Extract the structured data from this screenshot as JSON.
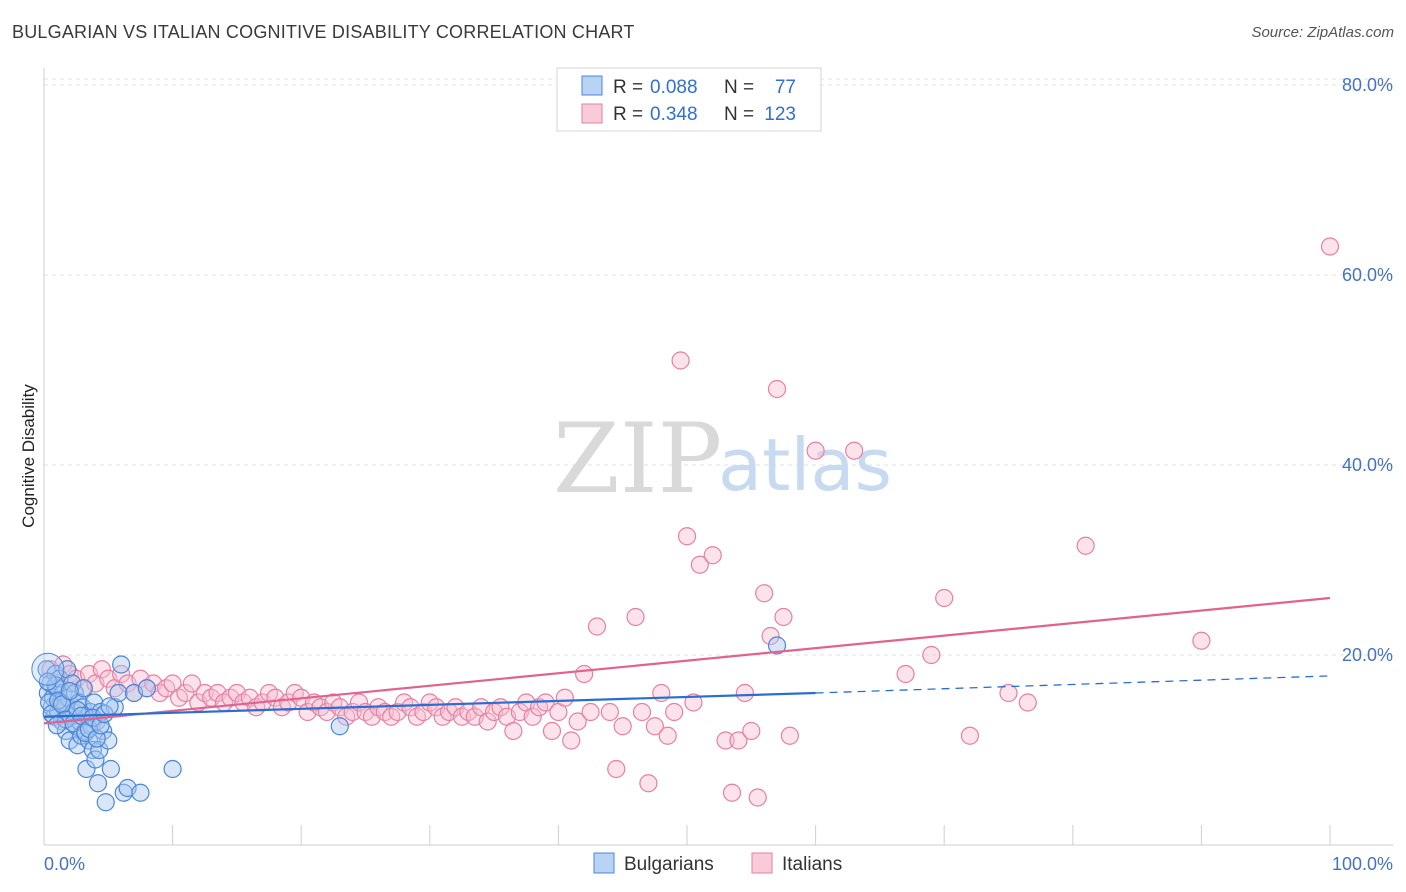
{
  "header": {
    "title": "BULGARIAN VS ITALIAN COGNITIVE DISABILITY CORRELATION CHART",
    "source": "Source: ZipAtlas.com"
  },
  "watermark": {
    "zip": "ZIP",
    "atlas": "atlas"
  },
  "colors": {
    "bulgarian_fill": "#a9c8f0",
    "bulgarian_stroke": "#4a86d8",
    "bulgarian_line": "#2a6fd0",
    "italian_fill": "#f7bfd2",
    "italian_stroke": "#e67fa3",
    "italian_line": "#e0638f",
    "grid": "#e2e2e2",
    "tick_label": "#4472c4"
  },
  "legend": {
    "rows": [
      {
        "r_label": "R =",
        "r_value": "0.088",
        "n_label": "N =",
        "n_value": "77"
      },
      {
        "r_label": "R =",
        "r_value": "0.348",
        "n_label": "N =",
        "n_value": "123"
      }
    ]
  },
  "bottom_legend": {
    "bulgarians": "Bulgarians",
    "italians": "Italians"
  },
  "chart_data": {
    "type": "scatter",
    "title": "BULGARIAN VS ITALIAN COGNITIVE DISABILITY CORRELATION CHART",
    "xlabel": "",
    "ylabel": "Cognitive Disability",
    "xlim": [
      0,
      100
    ],
    "ylim": [
      0,
      85
    ],
    "x_tick_labels": [
      "0.0%",
      "100.0%"
    ],
    "y_ticks": [
      20,
      40,
      60,
      80
    ],
    "y_tick_labels": [
      "20.0%",
      "40.0%",
      "60.0%",
      "80.0%"
    ],
    "grid": true,
    "legend_position": "top-center",
    "series": [
      {
        "name": "Bulgarians",
        "r": 0.088,
        "n": 77,
        "trend": {
          "x0": 0,
          "y0": 13.5,
          "x1": 60,
          "y1": 16.0,
          "dashed_to_x": 100,
          "dashed_to_y": 17.8
        },
        "points": [
          [
            0.2,
            18.5
          ],
          [
            0.3,
            16
          ],
          [
            0.5,
            17
          ],
          [
            0.6,
            14.5
          ],
          [
            0.7,
            15.5
          ],
          [
            0.8,
            13.5
          ],
          [
            0.9,
            18
          ],
          [
            1.0,
            16.5
          ],
          [
            1.1,
            14
          ],
          [
            1.2,
            17.5
          ],
          [
            1.3,
            15
          ],
          [
            1.4,
            13
          ],
          [
            1.5,
            16
          ],
          [
            1.6,
            14.5
          ],
          [
            1.7,
            12
          ],
          [
            1.8,
            18.5
          ],
          [
            1.9,
            15.5
          ],
          [
            2.0,
            11
          ],
          [
            2.1,
            13.5
          ],
          [
            2.2,
            17
          ],
          [
            2.3,
            14
          ],
          [
            2.4,
            16
          ],
          [
            2.5,
            12.5
          ],
          [
            2.6,
            10.5
          ],
          [
            2.7,
            15
          ],
          [
            2.8,
            13
          ],
          [
            2.9,
            11.5
          ],
          [
            3.0,
            14.5
          ],
          [
            3.1,
            16.5
          ],
          [
            3.2,
            12
          ],
          [
            3.3,
            8
          ],
          [
            3.4,
            13.5
          ],
          [
            3.5,
            11
          ],
          [
            3.6,
            14
          ],
          [
            3.7,
            12.5
          ],
          [
            3.8,
            10
          ],
          [
            3.9,
            15
          ],
          [
            4.0,
            9
          ],
          [
            4.1,
            13
          ],
          [
            4.2,
            6.5
          ],
          [
            4.3,
            10
          ],
          [
            4.4,
            14
          ],
          [
            4.6,
            12
          ],
          [
            4.8,
            4.5
          ],
          [
            5.0,
            11
          ],
          [
            5.2,
            8
          ],
          [
            5.5,
            14.5
          ],
          [
            5.8,
            16
          ],
          [
            6.0,
            19
          ],
          [
            6.2,
            5.5
          ],
          [
            6.5,
            6
          ],
          [
            7.0,
            16
          ],
          [
            7.5,
            5.5
          ],
          [
            8.0,
            16.5
          ],
          [
            10.0,
            8
          ],
          [
            23.0,
            12.5
          ],
          [
            57.0,
            21
          ],
          [
            0.4,
            15
          ],
          [
            0.6,
            13.8
          ],
          [
            0.9,
            16.8
          ],
          [
            1.1,
            15.2
          ],
          [
            1.4,
            14.8
          ],
          [
            1.7,
            13.2
          ],
          [
            2.0,
            16.2
          ],
          [
            2.3,
            12.8
          ],
          [
            2.6,
            14.2
          ],
          [
            2.9,
            13.6
          ],
          [
            3.2,
            11.8
          ],
          [
            3.5,
            12.2
          ],
          [
            3.8,
            13.4
          ],
          [
            4.1,
            11.2
          ],
          [
            4.4,
            12.6
          ],
          [
            4.7,
            13.8
          ],
          [
            5.1,
            14.6
          ],
          [
            1.0,
            12.6
          ],
          [
            0.3,
            17.2
          ]
        ]
      },
      {
        "name": "Italians",
        "r": 0.348,
        "n": 123,
        "trend": {
          "x0": 0,
          "y0": 12.8,
          "x1": 100,
          "y1": 26.0
        },
        "points": [
          [
            0.5,
            18.5
          ],
          [
            1.0,
            17
          ],
          [
            1.5,
            19
          ],
          [
            2.0,
            18
          ],
          [
            2.5,
            17.5
          ],
          [
            3.0,
            16.5
          ],
          [
            3.5,
            18
          ],
          [
            4.0,
            17
          ],
          [
            4.5,
            18.5
          ],
          [
            5.0,
            17.5
          ],
          [
            5.5,
            16.5
          ],
          [
            6.0,
            18
          ],
          [
            6.5,
            17
          ],
          [
            7.0,
            16
          ],
          [
            7.5,
            17.5
          ],
          [
            8.0,
            16.5
          ],
          [
            8.5,
            17
          ],
          [
            9.0,
            16
          ],
          [
            9.5,
            16.5
          ],
          [
            10.0,
            17
          ],
          [
            10.5,
            15.5
          ],
          [
            11.0,
            16
          ],
          [
            11.5,
            17
          ],
          [
            12.0,
            15
          ],
          [
            12.5,
            16
          ],
          [
            13.0,
            15.5
          ],
          [
            13.5,
            16
          ],
          [
            14.0,
            15
          ],
          [
            14.5,
            15.5
          ],
          [
            15.0,
            16
          ],
          [
            15.5,
            15
          ],
          [
            16.0,
            15.5
          ],
          [
            16.5,
            14.5
          ],
          [
            17.0,
            15
          ],
          [
            17.5,
            16
          ],
          [
            18.0,
            15.5
          ],
          [
            18.5,
            14.5
          ],
          [
            19.0,
            15
          ],
          [
            19.5,
            16
          ],
          [
            20.0,
            15.5
          ],
          [
            20.5,
            14
          ],
          [
            21.0,
            15
          ],
          [
            21.5,
            14.5
          ],
          [
            22.0,
            14
          ],
          [
            22.5,
            15
          ],
          [
            23.0,
            14.5
          ],
          [
            23.5,
            13.5
          ],
          [
            24.0,
            14
          ],
          [
            24.5,
            15
          ],
          [
            25.0,
            14
          ],
          [
            25.5,
            13.5
          ],
          [
            26.0,
            14.5
          ],
          [
            26.5,
            14
          ],
          [
            27.0,
            13.5
          ],
          [
            27.5,
            14
          ],
          [
            28.0,
            15
          ],
          [
            28.5,
            14.5
          ],
          [
            29.0,
            13.5
          ],
          [
            29.5,
            14
          ],
          [
            30.0,
            15
          ],
          [
            30.5,
            14.5
          ],
          [
            31.0,
            13.5
          ],
          [
            31.5,
            14
          ],
          [
            32.0,
            14.5
          ],
          [
            32.5,
            13.5
          ],
          [
            33.0,
            14
          ],
          [
            33.5,
            13.5
          ],
          [
            34.0,
            14.5
          ],
          [
            34.5,
            13
          ],
          [
            35.0,
            14
          ],
          [
            35.5,
            14.5
          ],
          [
            36.0,
            13.5
          ],
          [
            36.5,
            12
          ],
          [
            37.0,
            14
          ],
          [
            37.5,
            15
          ],
          [
            38.0,
            13.5
          ],
          [
            38.5,
            14.5
          ],
          [
            39.0,
            15
          ],
          [
            39.5,
            12
          ],
          [
            40.0,
            14
          ],
          [
            40.5,
            15.5
          ],
          [
            41.0,
            11
          ],
          [
            41.5,
            13
          ],
          [
            42.0,
            18
          ],
          [
            42.5,
            14
          ],
          [
            43.0,
            23
          ],
          [
            44.0,
            14
          ],
          [
            44.5,
            8
          ],
          [
            45.0,
            12.5
          ],
          [
            46.0,
            24
          ],
          [
            46.5,
            14
          ],
          [
            47.0,
            6.5
          ],
          [
            47.5,
            12.5
          ],
          [
            48.0,
            16
          ],
          [
            48.5,
            11.5
          ],
          [
            49.0,
            14
          ],
          [
            49.5,
            51
          ],
          [
            50.0,
            32.5
          ],
          [
            50.5,
            15
          ],
          [
            51.0,
            29.5
          ],
          [
            52.0,
            30.5
          ],
          [
            53.0,
            11
          ],
          [
            53.5,
            5.5
          ],
          [
            54.0,
            11
          ],
          [
            54.5,
            16
          ],
          [
            55.0,
            12
          ],
          [
            55.5,
            5
          ],
          [
            56.0,
            26.5
          ],
          [
            56.5,
            22
          ],
          [
            57.0,
            48
          ],
          [
            57.5,
            24
          ],
          [
            58.0,
            11.5
          ],
          [
            60.0,
            41.5
          ],
          [
            63.0,
            41.5
          ],
          [
            67.0,
            18
          ],
          [
            69.0,
            20
          ],
          [
            70.0,
            26
          ],
          [
            72.0,
            11.5
          ],
          [
            75.0,
            16
          ],
          [
            76.5,
            15
          ],
          [
            81.0,
            31.5
          ],
          [
            90.0,
            21.5
          ],
          [
            100.0,
            63
          ]
        ]
      }
    ]
  }
}
